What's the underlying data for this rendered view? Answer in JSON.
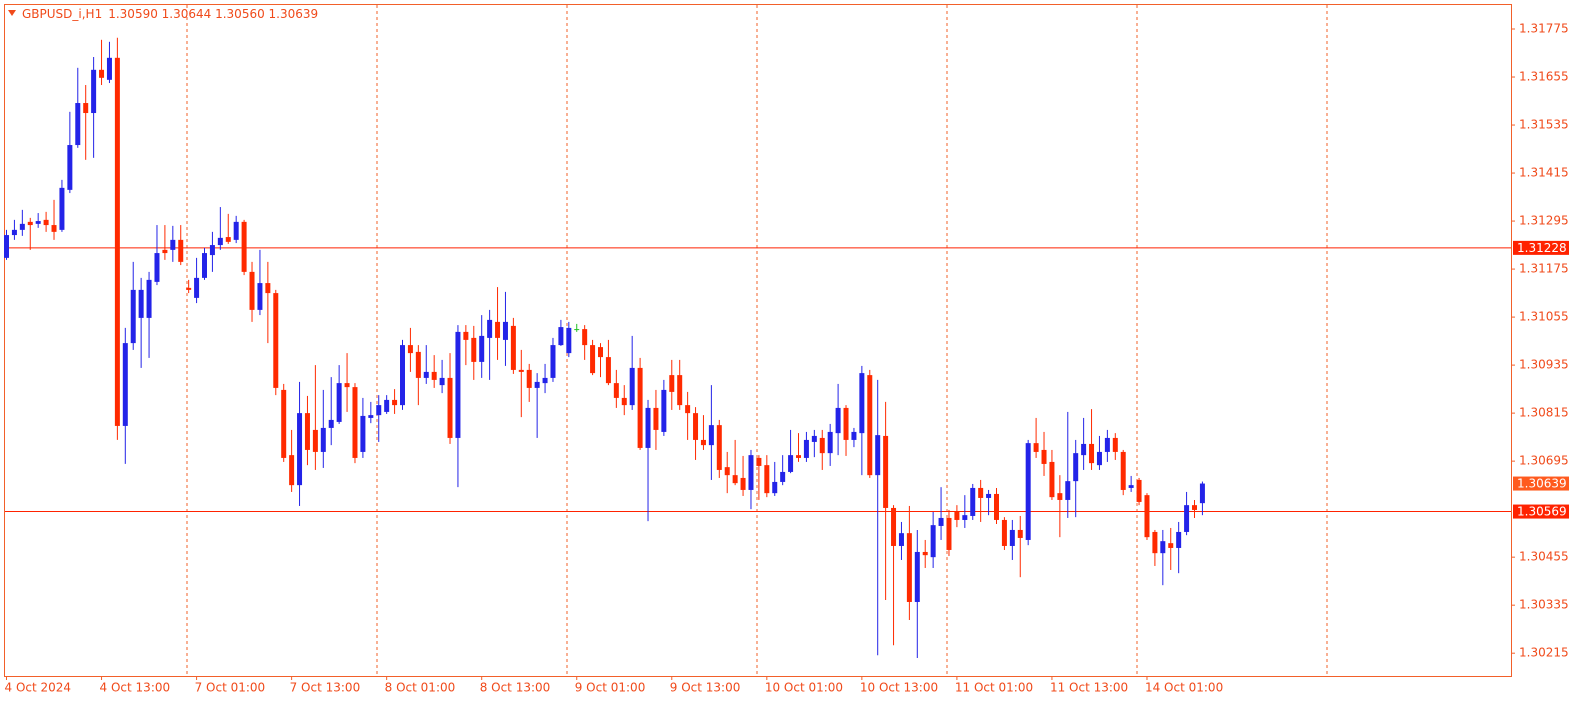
{
  "chart_data": {
    "type": "candlestick",
    "title": "GBPUSD_i,H1",
    "subtitle": "1.30590 1.30644 1.30560 1.30639",
    "up_color": "#2323e8",
    "down_color": "#ff2a00",
    "doji_color": "#22c022",
    "axis_color": "#f2602a",
    "level_color": "#ff2200",
    "last_color": "#ff5a1e",
    "ylim": [
      1.30158,
      1.31835
    ],
    "yticks": [
      1.31775,
      1.31655,
      1.31535,
      1.31415,
      1.31295,
      1.31175,
      1.31055,
      1.30935,
      1.30815,
      1.30695,
      1.30455,
      1.30335,
      1.30215
    ],
    "hlines": [
      1.31228,
      1.30569
    ],
    "categories": [
      "4 Oct 2024",
      null,
      null,
      null,
      null,
      null,
      null,
      null,
      null,
      null,
      null,
      null,
      "4 Oct 13:00",
      null,
      null,
      null,
      null,
      null,
      null,
      null,
      null,
      null,
      null,
      null,
      "7 Oct 01:00",
      null,
      null,
      null,
      null,
      null,
      null,
      null,
      null,
      null,
      null,
      null,
      "7 Oct 13:00",
      null,
      null,
      null,
      null,
      null,
      null,
      null,
      null,
      null,
      null,
      null,
      "8 Oct 01:00",
      null,
      null,
      null,
      null,
      null,
      null,
      null,
      null,
      null,
      null,
      null,
      "8 Oct 13:00",
      null,
      null,
      null,
      null,
      null,
      null,
      null,
      null,
      null,
      null,
      null,
      "9 Oct 01:00",
      null,
      null,
      null,
      null,
      null,
      null,
      null,
      null,
      null,
      null,
      null,
      "9 Oct 13:00",
      null,
      null,
      null,
      null,
      null,
      null,
      null,
      null,
      null,
      null,
      null,
      "10 Oct 01:00",
      null,
      null,
      null,
      null,
      null,
      null,
      null,
      null,
      null,
      null,
      null,
      "10 Oct 13:00",
      null,
      null,
      null,
      null,
      null,
      null,
      null,
      null,
      null,
      null,
      null,
      "11 Oct 01:00",
      null,
      null,
      null,
      null,
      null,
      null,
      null,
      null,
      null,
      null,
      null,
      "11 Oct 13:00",
      null,
      null,
      null,
      null,
      null,
      null,
      null,
      null,
      null,
      null,
      null,
      "14 Oct 01:00",
      null,
      null,
      null,
      null,
      null,
      null,
      null
    ],
    "open": [
      1.31203,
      1.3126,
      1.31273,
      1.31293,
      1.31288,
      1.31298,
      1.31285,
      1.31273,
      1.31373,
      1.31485,
      1.3159,
      1.31565,
      1.31673,
      1.31648,
      1.31703,
      1.30783,
      1.3099,
      1.31053,
      1.31053,
      1.31143,
      1.31223,
      1.31223,
      1.31248,
      1.31128,
      1.31103,
      1.31153,
      1.3121,
      1.31235,
      1.31255,
      1.31248,
      1.31293,
      1.31168,
      1.31073,
      1.3114,
      1.31115,
      1.30873,
      1.3071,
      1.30635,
      1.30815,
      1.30773,
      1.30718,
      1.30778,
      1.30793,
      1.3089,
      1.3088,
      1.30718,
      1.30803,
      1.3081,
      1.30818,
      1.30848,
      1.30835,
      1.30985,
      1.30968,
      1.30903,
      1.30918,
      1.30885,
      1.30903,
      1.30753,
      1.31018,
      1.31003,
      1.30943,
      1.31003,
      1.31043,
      1.30998,
      1.31033,
      1.30923,
      1.30923,
      1.30878,
      1.3089,
      1.30903,
      1.30985,
      1.30965,
      1.31025,
      1.31025,
      1.30985,
      1.3098,
      1.30955,
      1.3089,
      1.30853,
      1.30835,
      1.30928,
      1.30728,
      1.30828,
      1.30768,
      1.3091,
      1.3091,
      1.30835,
      1.30815,
      1.30748,
      1.30735,
      1.30785,
      1.3068,
      1.3066,
      1.30653,
      1.30623,
      1.30703,
      1.30685,
      1.30615,
      1.30643,
      1.30668,
      1.3071,
      1.30703,
      1.30743,
      1.30753,
      1.30715,
      1.30765,
      1.30828,
      1.30748,
      1.30765,
      1.3091,
      1.3066,
      1.30758,
      1.30578,
      1.30483,
      1.30515,
      1.30343,
      1.30468,
      1.30455,
      1.30533,
      1.30553,
      1.30568,
      1.30548,
      1.30558,
      1.30628,
      1.30603,
      1.30613,
      1.30548,
      1.30483,
      1.30523,
      1.30498,
      1.3074,
      1.30723,
      1.30693,
      1.30615,
      1.30598,
      1.30645,
      1.3071,
      1.30738,
      1.30685,
      1.30718,
      1.30753,
      1.30718,
      1.30628,
      1.30648,
      1.3061,
      1.30518,
      1.30465,
      1.3049,
      1.30478,
      1.30518,
      1.30585,
      1.3059
    ],
    "high": [
      1.31273,
      1.31298,
      1.31323,
      1.31303,
      1.31315,
      1.31318,
      1.31348,
      1.31398,
      1.31568,
      1.31678,
      1.31635,
      1.31705,
      1.31748,
      1.31743,
      1.31753,
      1.31028,
      1.31193,
      1.31153,
      1.31168,
      1.31285,
      1.31285,
      1.31283,
      1.31285,
      1.31148,
      1.31203,
      1.31228,
      1.31268,
      1.3133,
      1.31313,
      1.31308,
      1.31298,
      1.31193,
      1.31223,
      1.31193,
      1.31123,
      1.30888,
      1.30773,
      1.30893,
      1.30858,
      1.30935,
      1.30873,
      1.30905,
      1.30935,
      1.30965,
      1.3089,
      1.30853,
      1.30843,
      1.3086,
      1.3086,
      1.30875,
      1.30998,
      1.31028,
      1.30985,
      1.30985,
      1.3096,
      1.30948,
      1.30965,
      1.31035,
      1.31035,
      1.31033,
      1.3106,
      1.31073,
      1.3113,
      1.31118,
      1.31053,
      1.30973,
      1.30938,
      1.30915,
      1.30938,
      1.31003,
      1.31048,
      1.31043,
      1.31038,
      1.31035,
      1.30998,
      1.3099,
      1.30998,
      1.30923,
      1.30885,
      1.31008,
      1.30953,
      1.30848,
      1.30873,
      1.30898,
      1.30948,
      1.30948,
      1.30868,
      1.3083,
      1.3081,
      1.30885,
      1.30798,
      1.30718,
      1.30748,
      1.30708,
      1.30723,
      1.3071,
      1.3071,
      1.30693,
      1.3071,
      1.30773,
      1.30765,
      1.30768,
      1.30773,
      1.30773,
      1.30788,
      1.30888,
      1.30835,
      1.30778,
      1.30933,
      1.30923,
      1.30898,
      1.30843,
      1.30585,
      1.30543,
      1.30583,
      1.30523,
      1.30498,
      1.30568,
      1.3063,
      1.30573,
      1.30585,
      1.3061,
      1.30638,
      1.30648,
      1.30623,
      1.30628,
      1.30555,
      1.30548,
      1.30558,
      1.30748,
      1.30803,
      1.30768,
      1.30723,
      1.3066,
      1.30818,
      1.30748,
      1.30803,
      1.30825,
      1.30758,
      1.30773,
      1.30765,
      1.30723,
      1.30658,
      1.30653,
      1.30615,
      1.30523,
      1.30523,
      1.30528,
      1.30543,
      1.30618,
      1.30598,
      1.30644
    ],
    "low": [
      1.31198,
      1.31248,
      1.31258,
      1.31223,
      1.31278,
      1.31268,
      1.31248,
      1.31268,
      1.31365,
      1.31478,
      1.31448,
      1.31453,
      1.31635,
      1.3164,
      1.30748,
      1.30688,
      1.30973,
      1.30928,
      1.30953,
      1.31135,
      1.31198,
      1.31193,
      1.31185,
      1.31115,
      1.3109,
      1.31148,
      1.31168,
      1.31223,
      1.31238,
      1.3124,
      1.3116,
      1.31043,
      1.3106,
      1.3099,
      1.3086,
      1.30693,
      1.30618,
      1.30583,
      1.30685,
      1.30673,
      1.30678,
      1.30735,
      1.30788,
      1.30818,
      1.3069,
      1.30703,
      1.3079,
      1.30743,
      1.30813,
      1.30813,
      1.30823,
      1.30918,
      1.30835,
      1.30888,
      1.30878,
      1.30865,
      1.30738,
      1.3063,
      1.30935,
      1.30898,
      1.30903,
      1.30898,
      1.30948,
      1.30933,
      1.30913,
      1.30805,
      1.30843,
      1.30753,
      1.30865,
      1.30893,
      1.30983,
      1.30955,
      1.31018,
      1.30948,
      1.3091,
      1.30905,
      1.30885,
      1.30828,
      1.3081,
      1.30823,
      1.30723,
      1.30545,
      1.30723,
      1.30758,
      1.30823,
      1.30823,
      1.30748,
      1.30698,
      1.30723,
      1.30648,
      1.30653,
      1.30615,
      1.30635,
      1.30608,
      1.30575,
      1.30598,
      1.30605,
      1.30608,
      1.30635,
      1.30665,
      1.30693,
      1.30693,
      1.30705,
      1.30673,
      1.30683,
      1.3071,
      1.30708,
      1.3073,
      1.3066,
      1.30653,
      1.3021,
      1.30348,
      1.30235,
      1.30448,
      1.30298,
      1.30203,
      1.30428,
      1.30428,
      1.30498,
      1.30458,
      1.3053,
      1.30528,
      1.30548,
      1.30543,
      1.3056,
      1.30538,
      1.30473,
      1.30448,
      1.30405,
      1.30485,
      1.30703,
      1.30658,
      1.30598,
      1.30505,
      1.30553,
      1.30555,
      1.30673,
      1.30673,
      1.30673,
      1.30693,
      1.30698,
      1.3061,
      1.30618,
      1.30585,
      1.30498,
      1.30433,
      1.30385,
      1.30423,
      1.30415,
      1.3051,
      1.30553,
      1.3056
    ],
    "close": [
      1.3126,
      1.31273,
      1.31288,
      1.31285,
      1.31295,
      1.31285,
      1.31268,
      1.31378,
      1.31485,
      1.3159,
      1.31565,
      1.31673,
      1.31653,
      1.31703,
      1.30783,
      1.3099,
      1.31123,
      1.31123,
      1.31148,
      1.31215,
      1.31215,
      1.31248,
      1.31193,
      1.31123,
      1.31153,
      1.31215,
      1.31235,
      1.31253,
      1.31243,
      1.31293,
      1.31168,
      1.31073,
      1.3114,
      1.31115,
      1.30878,
      1.30703,
      1.30635,
      1.30815,
      1.30723,
      1.30718,
      1.30778,
      1.30798,
      1.3089,
      1.3088,
      1.30703,
      1.30808,
      1.3081,
      1.30835,
      1.30848,
      1.30835,
      1.30985,
      1.30965,
      1.30903,
      1.30918,
      1.30898,
      1.30903,
      1.30753,
      1.31018,
      1.30998,
      1.30943,
      1.31008,
      1.31048,
      1.31003,
      1.31043,
      1.30923,
      1.30918,
      1.30878,
      1.30893,
      1.30903,
      1.30985,
      1.3103,
      1.31028,
      1.31025,
      1.30985,
      1.30915,
      1.30955,
      1.3089,
      1.30853,
      1.30835,
      1.30928,
      1.30728,
      1.30828,
      1.30773,
      1.30873,
      1.30868,
      1.30835,
      1.30815,
      1.30748,
      1.30735,
      1.30785,
      1.30673,
      1.3066,
      1.3064,
      1.30623,
      1.3071,
      1.30683,
      1.30615,
      1.30643,
      1.30668,
      1.3071,
      1.30703,
      1.30748,
      1.30758,
      1.30715,
      1.30768,
      1.30828,
      1.30748,
      1.30768,
      1.30915,
      1.3066,
      1.3076,
      1.30578,
      1.30483,
      1.30515,
      1.30343,
      1.30468,
      1.3046,
      1.30535,
      1.30553,
      1.30473,
      1.30548,
      1.3056,
      1.30628,
      1.30603,
      1.30613,
      1.30548,
      1.30483,
      1.30523,
      1.30503,
      1.3074,
      1.30718,
      1.30688,
      1.30605,
      1.30598,
      1.30645,
      1.30715,
      1.30738,
      1.3069,
      1.30718,
      1.30753,
      1.30718,
      1.30623,
      1.30635,
      1.30593,
      1.30505,
      1.30465,
      1.30495,
      1.30478,
      1.30518,
      1.30585,
      1.30573,
      1.30639
    ]
  }
}
